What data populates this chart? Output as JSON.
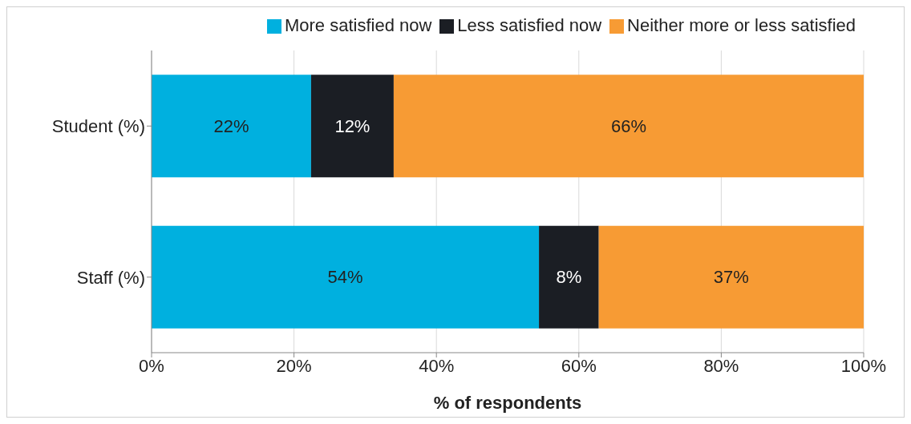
{
  "chart_data": {
    "type": "bar",
    "orientation": "horizontal",
    "stacked": true,
    "categories": [
      "Student (%)",
      "Staff (%)"
    ],
    "series": [
      {
        "name": "More satisfied now",
        "color": "#00b0df",
        "values": [
          22.4,
          54.4
        ],
        "value_labels": [
          "22%",
          "54%"
        ]
      },
      {
        "name": "Less satisfied now",
        "color": "#1b1e24",
        "values": [
          11.6,
          8.4
        ],
        "value_labels": [
          "12%",
          "8%"
        ]
      },
      {
        "name": "Neither more or less satisfied",
        "color": "#f79b34",
        "values": [
          66.0,
          37.2
        ],
        "value_labels": [
          "66%",
          "37%"
        ]
      }
    ],
    "xlim": [
      0,
      100
    ],
    "xticks": [
      {
        "value": 0,
        "label": "0%"
      },
      {
        "value": 20,
        "label": "20%"
      },
      {
        "value": 40,
        "label": "40%"
      },
      {
        "value": 60,
        "label": "60%"
      },
      {
        "value": 80,
        "label": "80%"
      },
      {
        "value": 100,
        "label": "100%"
      }
    ],
    "xlabel": "% of respondents",
    "grid": "x",
    "legend": "top right"
  }
}
